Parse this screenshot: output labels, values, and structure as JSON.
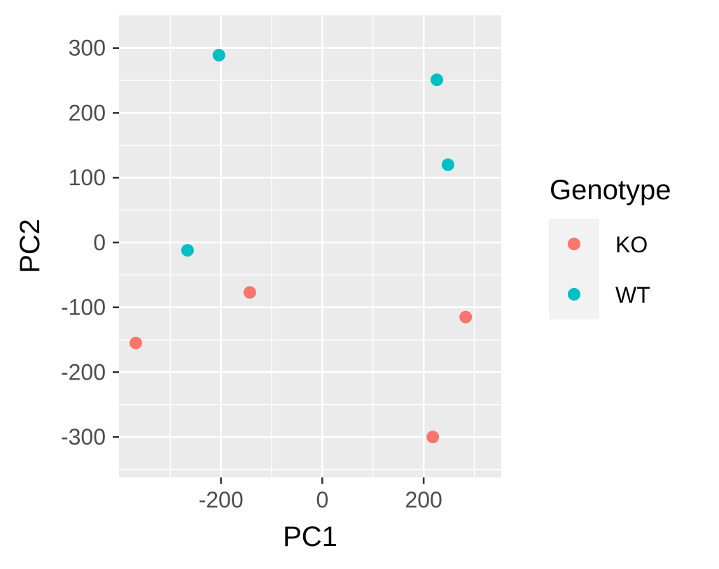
{
  "chart_data": {
    "type": "scatter",
    "title": "",
    "xlabel": "PC1",
    "ylabel": "PC2",
    "xlim": [
      -368,
      320
    ],
    "ylim": [
      -330,
      318
    ],
    "x_ticks": [
      -200,
      0,
      200
    ],
    "y_ticks": [
      -300,
      -200,
      -100,
      0,
      100,
      200,
      300
    ],
    "x_tick_labels": [
      "-200",
      "0",
      "200"
    ],
    "y_tick_labels": [
      "-300",
      "-200",
      "-100",
      "0",
      "100",
      "200",
      "300"
    ],
    "grid": true,
    "legend": {
      "title": "Genotype",
      "placement": "right"
    },
    "series": [
      {
        "name": "KO",
        "color": "#F8766D",
        "points": [
          {
            "x": -368,
            "y": -155
          },
          {
            "x": -143,
            "y": -77
          },
          {
            "x": 283,
            "y": -115
          },
          {
            "x": 218,
            "y": -300
          }
        ]
      },
      {
        "name": "WT",
        "color": "#00BFC4",
        "points": [
          {
            "x": -204,
            "y": 289
          },
          {
            "x": 226,
            "y": 251
          },
          {
            "x": 248,
            "y": 120
          },
          {
            "x": -266,
            "y": -12
          }
        ]
      }
    ]
  }
}
